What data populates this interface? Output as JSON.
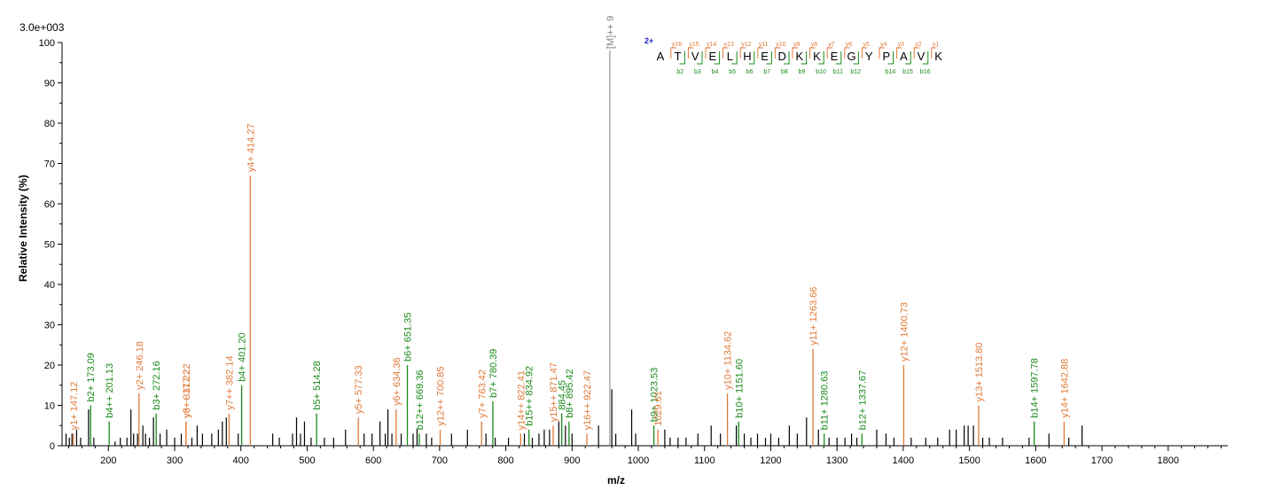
{
  "chart_data": {
    "type": "bar",
    "title": "",
    "intensity_scale_label": "3.0e+003",
    "xlabel": "m/z",
    "ylabel": "Relative  Intensity (%)",
    "xlim": [
      130,
      1890
    ],
    "ylim": [
      0,
      100
    ],
    "x_ticks": [
      200,
      300,
      400,
      500,
      600,
      700,
      800,
      900,
      1000,
      1100,
      1200,
      1300,
      1400,
      1500,
      1600,
      1700,
      1800
    ],
    "y_ticks": [
      0,
      10,
      20,
      30,
      40,
      50,
      60,
      70,
      80,
      90,
      100
    ],
    "colors": {
      "y_ion": "#e07a3a",
      "b_ion": "#1a8a1a",
      "unassigned": "#000000",
      "precursor": "#808080",
      "charge": "#1a1acc"
    },
    "precursor": {
      "mz": 957,
      "intensity": 98,
      "label": "[M]++ 9"
    },
    "labeled_peaks": [
      {
        "mz": 147.12,
        "intensity": 3,
        "label": "y1+ 147.12",
        "ion": "y"
      },
      {
        "mz": 173.09,
        "intensity": 10,
        "label": "b2+ 173.09",
        "ion": "b"
      },
      {
        "mz": 201.13,
        "intensity": 6,
        "label": "b4++ 201.13",
        "ion": "b"
      },
      {
        "mz": 246.18,
        "intensity": 13,
        "label": "y2+ 246.18",
        "ion": "y"
      },
      {
        "mz": 272.16,
        "intensity": 8,
        "label": "b3+ 272.16",
        "ion": "b"
      },
      {
        "mz": 317.22,
        "intensity": 6,
        "label": "y3+ 317.22",
        "ion": "y"
      },
      {
        "mz": 317.22,
        "intensity": 6,
        "label": "y6++ 317.22",
        "ion": "y"
      },
      {
        "mz": 382.14,
        "intensity": 8,
        "label": "y7++ 382.14",
        "ion": "y"
      },
      {
        "mz": 401.2,
        "intensity": 15,
        "label": "b4+ 401.20",
        "ion": "b"
      },
      {
        "mz": 414.27,
        "intensity": 67,
        "label": "y4+ 414.27",
        "ion": "y"
      },
      {
        "mz": 514.28,
        "intensity": 8,
        "label": "b5+ 514.28",
        "ion": "b"
      },
      {
        "mz": 577.33,
        "intensity": 7,
        "label": "y5+ 577.33",
        "ion": "y"
      },
      {
        "mz": 634.36,
        "intensity": 9,
        "label": "y6+ 634.36",
        "ion": "y"
      },
      {
        "mz": 651.35,
        "intensity": 20,
        "label": "b6+ 651.35",
        "ion": "b"
      },
      {
        "mz": 669.36,
        "intensity": 3,
        "label": "b12++ 669.36",
        "ion": "b"
      },
      {
        "mz": 700.85,
        "intensity": 4,
        "label": "y12++ 700.85",
        "ion": "y"
      },
      {
        "mz": 763.42,
        "intensity": 6,
        "label": "y7+ 763.42",
        "ion": "y"
      },
      {
        "mz": 780.39,
        "intensity": 11,
        "label": "b7+ 780.39",
        "ion": "b"
      },
      {
        "mz": 822.41,
        "intensity": 3,
        "label": "y14++ 822.41",
        "ion": "y"
      },
      {
        "mz": 834.92,
        "intensity": 4,
        "label": "b15++ 834.92",
        "ion": "b"
      },
      {
        "mz": 871.47,
        "intensity": 5,
        "label": "y15++ 871.47",
        "ion": "y"
      },
      {
        "mz": 884.45,
        "intensity": 8,
        "label": "884.45",
        "ion": "b"
      },
      {
        "mz": 895.42,
        "intensity": 6,
        "label": "b8+ 895.42",
        "ion": "b"
      },
      {
        "mz": 922.47,
        "intensity": 3,
        "label": "y16++ 922.47",
        "ion": "y"
      },
      {
        "mz": 1023.53,
        "intensity": 5,
        "label": "b9+ 1023.53",
        "ion": "b"
      },
      {
        "mz": 1029.61,
        "intensity": 4,
        "label": "1029.61",
        "ion": "y"
      },
      {
        "mz": 1134.62,
        "intensity": 13,
        "label": "y10+ 1134.62",
        "ion": "y"
      },
      {
        "mz": 1151.6,
        "intensity": 6,
        "label": "b10+ 1151.60",
        "ion": "b"
      },
      {
        "mz": 1263.66,
        "intensity": 24,
        "label": "y11+ 1263.66",
        "ion": "y"
      },
      {
        "mz": 1280.63,
        "intensity": 3,
        "label": "b11+ 1280.63",
        "ion": "b"
      },
      {
        "mz": 1337.67,
        "intensity": 3,
        "label": "b12+ 1337.67",
        "ion": "b"
      },
      {
        "mz": 1400.73,
        "intensity": 20,
        "label": "y12+ 1400.73",
        "ion": "y"
      },
      {
        "mz": 1513.8,
        "intensity": 10,
        "label": "y13+ 1513.80",
        "ion": "y"
      },
      {
        "mz": 1597.78,
        "intensity": 6,
        "label": "b14+ 1597.78",
        "ion": "b"
      },
      {
        "mz": 1642.88,
        "intensity": 6,
        "label": "y14+ 1642.88",
        "ion": "y"
      }
    ],
    "unlabeled_peaks": [
      [
        136,
        3
      ],
      [
        141,
        2
      ],
      [
        145,
        3
      ],
      [
        152,
        4
      ],
      [
        158,
        2
      ],
      [
        170,
        9
      ],
      [
        178,
        2
      ],
      [
        210,
        1
      ],
      [
        218,
        2
      ],
      [
        228,
        2
      ],
      [
        234,
        9
      ],
      [
        238,
        3
      ],
      [
        244,
        3
      ],
      [
        252,
        5
      ],
      [
        256,
        3
      ],
      [
        262,
        2
      ],
      [
        268,
        7
      ],
      [
        278,
        3
      ],
      [
        288,
        4
      ],
      [
        300,
        2
      ],
      [
        310,
        3
      ],
      [
        326,
        2
      ],
      [
        334,
        5
      ],
      [
        342,
        3
      ],
      [
        356,
        3
      ],
      [
        366,
        4
      ],
      [
        372,
        6
      ],
      [
        378,
        7
      ],
      [
        396,
        3
      ],
      [
        448,
        3
      ],
      [
        458,
        2
      ],
      [
        478,
        3
      ],
      [
        484,
        7
      ],
      [
        490,
        3
      ],
      [
        496,
        6
      ],
      [
        506,
        2
      ],
      [
        526,
        2
      ],
      [
        540,
        2
      ],
      [
        558,
        4
      ],
      [
        586,
        3
      ],
      [
        598,
        3
      ],
      [
        610,
        6
      ],
      [
        618,
        3
      ],
      [
        622,
        9
      ],
      [
        628,
        3
      ],
      [
        642,
        3
      ],
      [
        660,
        3
      ],
      [
        666,
        4
      ],
      [
        680,
        3
      ],
      [
        688,
        2
      ],
      [
        718,
        3
      ],
      [
        742,
        4
      ],
      [
        770,
        3
      ],
      [
        784,
        2
      ],
      [
        804,
        2
      ],
      [
        828,
        3
      ],
      [
        840,
        2
      ],
      [
        850,
        3
      ],
      [
        858,
        4
      ],
      [
        866,
        4
      ],
      [
        880,
        6
      ],
      [
        890,
        5
      ],
      [
        900,
        3
      ],
      [
        940,
        5
      ],
      [
        960,
        14
      ],
      [
        966,
        3
      ],
      [
        990,
        9
      ],
      [
        996,
        3
      ],
      [
        1040,
        4
      ],
      [
        1048,
        2
      ],
      [
        1060,
        2
      ],
      [
        1072,
        2
      ],
      [
        1090,
        3
      ],
      [
        1110,
        5
      ],
      [
        1124,
        3
      ],
      [
        1148,
        5
      ],
      [
        1160,
        3
      ],
      [
        1170,
        2
      ],
      [
        1180,
        3
      ],
      [
        1192,
        2
      ],
      [
        1200,
        3
      ],
      [
        1212,
        2
      ],
      [
        1228,
        5
      ],
      [
        1240,
        3
      ],
      [
        1254,
        7
      ],
      [
        1272,
        4
      ],
      [
        1288,
        2
      ],
      [
        1300,
        2
      ],
      [
        1312,
        2
      ],
      [
        1322,
        3
      ],
      [
        1330,
        2
      ],
      [
        1360,
        4
      ],
      [
        1374,
        3
      ],
      [
        1386,
        2
      ],
      [
        1412,
        2
      ],
      [
        1434,
        2
      ],
      [
        1452,
        2
      ],
      [
        1470,
        4
      ],
      [
        1480,
        4
      ],
      [
        1492,
        5
      ],
      [
        1498,
        5
      ],
      [
        1506,
        5
      ],
      [
        1520,
        2
      ],
      [
        1530,
        2
      ],
      [
        1550,
        2
      ],
      [
        1590,
        2
      ],
      [
        1620,
        3
      ],
      [
        1650,
        2
      ],
      [
        1670,
        5
      ]
    ],
    "sequence": {
      "charge": "2+",
      "residues": [
        "A",
        "T",
        "V",
        "E",
        "L",
        "H",
        "E",
        "D",
        "K",
        "K",
        "E",
        "G",
        "Y",
        "P",
        "A",
        "V",
        "K"
      ],
      "y_ions": [
        "y16",
        "y15",
        "y14",
        "y13",
        "y12",
        "y11",
        "y10",
        "y9",
        "y8",
        "y7",
        "y6",
        "y5",
        "y4",
        "y3",
        "y2",
        "y1"
      ],
      "b_ions": [
        "b2",
        "b3",
        "b4",
        "b5",
        "b6",
        "b7",
        "b8",
        "b9",
        "b10",
        "b11",
        "b12",
        "",
        "b14",
        "b15",
        "b16"
      ]
    }
  }
}
